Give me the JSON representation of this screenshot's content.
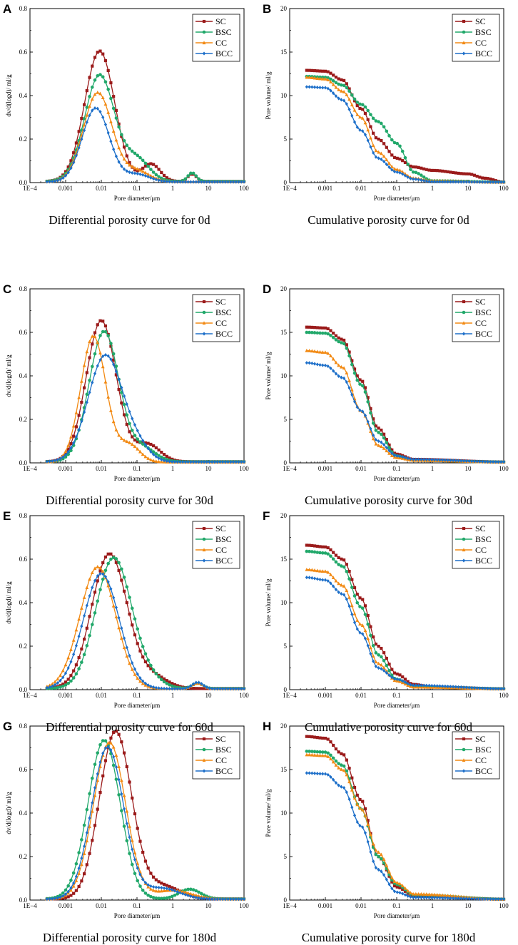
{
  "series_names": [
    "SC",
    "BSC",
    "CC",
    "BCC"
  ],
  "series_colors": {
    "SC": "#9b1b1b",
    "BSC": "#21a86a",
    "CC": "#f28a14",
    "BCC": "#1d6fc9"
  },
  "series_markers": {
    "SC": "square",
    "BSC": "circle",
    "CC": "triangle",
    "BCC": "diamond"
  },
  "x_axis": {
    "label": "Pore diameter/μm",
    "scale": "log",
    "range": [
      0.0001,
      100
    ],
    "ticks": [
      0.0001,
      0.001,
      0.01,
      0.1,
      1,
      10,
      100
    ],
    "tick_labels": [
      "1E−4",
      "0.001",
      "0.01",
      "0.1",
      "1",
      "10",
      "100"
    ]
  },
  "chart_data": [
    {
      "id": "A",
      "type": "line",
      "panel_label": "A",
      "caption": "Differential porosity curve for 0d",
      "ylabel": "dv/d(logd)/ ml/g",
      "ylim": [
        0,
        0.8
      ],
      "yticks": [
        0,
        0.2,
        0.4,
        0.6,
        0.8
      ],
      "ytick_labels": [
        "0.0",
        "0.2",
        "0.4",
        "0.6",
        "0.8"
      ],
      "x_min": 0.0003,
      "points": 75,
      "series": [
        {
          "name": "SC",
          "peaks": [
            [
              0.009,
              0.6,
              0.42
            ],
            [
              0.25,
              0.08,
              0.25
            ],
            [
              3.5,
              0.035,
              0.12
            ]
          ],
          "base": 0.005
        },
        {
          "name": "BSC",
          "peaks": [
            [
              0.009,
              0.49,
              0.42
            ],
            [
              0.1,
              0.1,
              0.35
            ],
            [
              3.5,
              0.04,
              0.12
            ]
          ],
          "base": 0.005
        },
        {
          "name": "CC",
          "peaks": [
            [
              0.008,
              0.41,
              0.4
            ],
            [
              0.1,
              0.05,
              0.35
            ]
          ],
          "base": 0.004
        },
        {
          "name": "BCC",
          "peaks": [
            [
              0.007,
              0.34,
              0.38
            ],
            [
              0.1,
              0.035,
              0.35
            ]
          ],
          "base": 0.003
        }
      ]
    },
    {
      "id": "B",
      "type": "line",
      "panel_label": "B",
      "caption": "Cumulative porosity curve for 0d",
      "ylabel": "Pore volume/ ml/g",
      "ylim": [
        0,
        20
      ],
      "yticks": [
        0,
        5,
        10,
        15,
        20
      ],
      "ytick_labels": [
        "0",
        "5",
        "10",
        "15",
        "20"
      ],
      "x_min": 0.0003,
      "points": 75,
      "series": [
        {
          "name": "SC",
          "curve": [
            [
              0.0003,
              12.9
            ],
            [
              0.001,
              12.8
            ],
            [
              0.003,
              11.8
            ],
            [
              0.01,
              8.5
            ],
            [
              0.03,
              5.0
            ],
            [
              0.1,
              2.8
            ],
            [
              0.3,
              1.8
            ],
            [
              1,
              1.4
            ],
            [
              10,
              1.0
            ],
            [
              30,
              0.5
            ],
            [
              100,
              0.05
            ]
          ]
        },
        {
          "name": "BSC",
          "curve": [
            [
              0.0003,
              12.2
            ],
            [
              0.001,
              12.1
            ],
            [
              0.003,
              11.2
            ],
            [
              0.01,
              9.0
            ],
            [
              0.03,
              7.0
            ],
            [
              0.1,
              4.5
            ],
            [
              0.3,
              1.2
            ],
            [
              1,
              0.2
            ],
            [
              100,
              0.05
            ]
          ]
        },
        {
          "name": "CC",
          "curve": [
            [
              0.0003,
              12.1
            ],
            [
              0.001,
              11.9
            ],
            [
              0.003,
              10.5
            ],
            [
              0.01,
              7.5
            ],
            [
              0.03,
              3.5
            ],
            [
              0.1,
              1.5
            ],
            [
              0.3,
              0.5
            ],
            [
              1,
              0.2
            ],
            [
              100,
              0.05
            ]
          ]
        },
        {
          "name": "BCC",
          "curve": [
            [
              0.0003,
              11.0
            ],
            [
              0.001,
              10.9
            ],
            [
              0.003,
              9.5
            ],
            [
              0.01,
              6.0
            ],
            [
              0.03,
              2.8
            ],
            [
              0.1,
              1.2
            ],
            [
              0.3,
              0.4
            ],
            [
              1,
              0.1
            ],
            [
              100,
              0.05
            ]
          ]
        }
      ]
    },
    {
      "id": "C",
      "type": "line",
      "panel_label": "C",
      "caption": "Differential porosity curve for 30d",
      "ylabel": "dv/d(logd)/ ml/g",
      "ylim": [
        0,
        0.8
      ],
      "yticks": [
        0,
        0.2,
        0.4,
        0.6,
        0.8
      ],
      "ytick_labels": [
        "0.0",
        "0.2",
        "0.4",
        "0.6",
        "0.8"
      ],
      "x_min": 0.0003,
      "points": 75,
      "series": [
        {
          "name": "SC",
          "peaks": [
            [
              0.01,
              0.65,
              0.42
            ],
            [
              0.2,
              0.08,
              0.35
            ]
          ],
          "base": 0.005
        },
        {
          "name": "BSC",
          "peaks": [
            [
              0.012,
              0.6,
              0.42
            ],
            [
              0.15,
              0.06,
              0.35
            ]
          ],
          "base": 0.005
        },
        {
          "name": "CC",
          "peaks": [
            [
              0.006,
              0.58,
              0.35
            ],
            [
              0.06,
              0.08,
              0.3
            ]
          ],
          "base": 0.004
        },
        {
          "name": "BCC",
          "peaks": [
            [
              0.013,
              0.49,
              0.48
            ],
            [
              0.1,
              0.06,
              0.35
            ]
          ],
          "base": 0.004
        }
      ]
    },
    {
      "id": "D",
      "type": "line",
      "panel_label": "D",
      "caption": "Cumulative porosity curve for 30d",
      "ylabel": "Pore volume/ ml/g",
      "ylim": [
        0,
        20
      ],
      "yticks": [
        0,
        5,
        10,
        15,
        20
      ],
      "ytick_labels": [
        "0",
        "5",
        "10",
        "15",
        "20"
      ],
      "x_min": 0.0003,
      "points": 75,
      "series": [
        {
          "name": "SC",
          "curve": [
            [
              0.0003,
              15.6
            ],
            [
              0.001,
              15.5
            ],
            [
              0.003,
              14.2
            ],
            [
              0.01,
              9.5
            ],
            [
              0.03,
              4.0
            ],
            [
              0.1,
              1.0
            ],
            [
              0.3,
              0.4
            ],
            [
              100,
              0.1
            ]
          ]
        },
        {
          "name": "BSC",
          "curve": [
            [
              0.0003,
              15.0
            ],
            [
              0.001,
              14.9
            ],
            [
              0.003,
              13.8
            ],
            [
              0.01,
              9.0
            ],
            [
              0.03,
              3.5
            ],
            [
              0.1,
              0.8
            ],
            [
              0.3,
              0.3
            ],
            [
              100,
              0.1
            ]
          ]
        },
        {
          "name": "CC",
          "curve": [
            [
              0.0003,
              12.9
            ],
            [
              0.001,
              12.7
            ],
            [
              0.003,
              11.0
            ],
            [
              0.01,
              6.0
            ],
            [
              0.03,
              2.0
            ],
            [
              0.1,
              0.6
            ],
            [
              0.3,
              0.3
            ],
            [
              100,
              0.1
            ]
          ]
        },
        {
          "name": "BCC",
          "curve": [
            [
              0.0003,
              11.5
            ],
            [
              0.001,
              11.2
            ],
            [
              0.003,
              9.8
            ],
            [
              0.01,
              6.0
            ],
            [
              0.03,
              2.5
            ],
            [
              0.1,
              0.8
            ],
            [
              0.3,
              0.4
            ],
            [
              100,
              0.1
            ]
          ]
        }
      ]
    },
    {
      "id": "E",
      "type": "line",
      "panel_label": "E",
      "caption": "Differential porosity curve for 60d",
      "ylabel": "dv/d(logd)/ ml/g",
      "ylim": [
        0,
        0.8
      ],
      "yticks": [
        0,
        0.2,
        0.4,
        0.6,
        0.8
      ],
      "ytick_labels": [
        "0.0",
        "0.2",
        "0.4",
        "0.6",
        "0.8"
      ],
      "x_min": 0.0003,
      "points": 75,
      "series": [
        {
          "name": "SC",
          "peaks": [
            [
              0.017,
              0.62,
              0.5
            ],
            [
              0.3,
              0.05,
              0.4
            ]
          ],
          "base": 0.005
        },
        {
          "name": "BSC",
          "peaks": [
            [
              0.022,
              0.6,
              0.5
            ],
            [
              0.2,
              0.04,
              0.4
            ],
            [
              5,
              0.025,
              0.15
            ]
          ],
          "base": 0.005
        },
        {
          "name": "CC",
          "peaks": [
            [
              0.008,
              0.56,
              0.5
            ],
            [
              5,
              0.025,
              0.15
            ]
          ],
          "base": 0.005
        },
        {
          "name": "BCC",
          "peaks": [
            [
              0.01,
              0.53,
              0.5
            ],
            [
              5,
              0.03,
              0.15
            ]
          ],
          "base": 0.004
        }
      ]
    },
    {
      "id": "F",
      "type": "line",
      "panel_label": "F",
      "caption": "Cumulative porosity curve for 60d",
      "ylabel": "Pore volume/ ml/g",
      "ylim": [
        0,
        20
      ],
      "yticks": [
        0,
        5,
        10,
        15,
        20
      ],
      "ytick_labels": [
        "0",
        "5",
        "10",
        "15",
        "20"
      ],
      "x_min": 0.0003,
      "points": 75,
      "series": [
        {
          "name": "SC",
          "curve": [
            [
              0.0003,
              16.6
            ],
            [
              0.001,
              16.4
            ],
            [
              0.003,
              15.0
            ],
            [
              0.01,
              10.5
            ],
            [
              0.03,
              5.0
            ],
            [
              0.1,
              1.8
            ],
            [
              0.3,
              0.6
            ],
            [
              1,
              0.3
            ],
            [
              100,
              0.1
            ]
          ]
        },
        {
          "name": "BSC",
          "curve": [
            [
              0.0003,
              15.9
            ],
            [
              0.001,
              15.7
            ],
            [
              0.003,
              14.2
            ],
            [
              0.01,
              9.5
            ],
            [
              0.03,
              4.0
            ],
            [
              0.1,
              1.2
            ],
            [
              0.3,
              0.4
            ],
            [
              100,
              0.1
            ]
          ]
        },
        {
          "name": "CC",
          "curve": [
            [
              0.0003,
              13.8
            ],
            [
              0.001,
              13.6
            ],
            [
              0.003,
              12.0
            ],
            [
              0.01,
              7.5
            ],
            [
              0.03,
              3.0
            ],
            [
              0.1,
              1.0
            ],
            [
              0.3,
              0.3
            ],
            [
              100,
              0.1
            ]
          ]
        },
        {
          "name": "BCC",
          "curve": [
            [
              0.0003,
              12.9
            ],
            [
              0.001,
              12.6
            ],
            [
              0.003,
              11.0
            ],
            [
              0.01,
              6.5
            ],
            [
              0.03,
              2.5
            ],
            [
              0.1,
              1.2
            ],
            [
              0.3,
              0.5
            ],
            [
              100,
              0.1
            ]
          ]
        }
      ]
    },
    {
      "id": "G",
      "type": "line",
      "panel_label": "G",
      "caption": "Differential porosity curve for 180d",
      "ylabel": "dv/d(logd)/ ml/g",
      "ylim": [
        0,
        0.8
      ],
      "yticks": [
        0,
        0.2,
        0.4,
        0.6,
        0.8
      ],
      "ytick_labels": [
        "0.0",
        "0.2",
        "0.4",
        "0.6",
        "0.8"
      ],
      "x_min": 0.0003,
      "points": 75,
      "series": [
        {
          "name": "SC",
          "peaks": [
            [
              0.025,
              0.77,
              0.45
            ],
            [
              0.5,
              0.06,
              0.5
            ]
          ],
          "base": 0.005
        },
        {
          "name": "BSC",
          "peaks": [
            [
              0.012,
              0.73,
              0.45
            ],
            [
              3,
              0.045,
              0.3
            ]
          ],
          "base": 0.005
        },
        {
          "name": "CC",
          "peaks": [
            [
              0.017,
              0.72,
              0.45
            ],
            [
              1,
              0.04,
              0.5
            ]
          ],
          "base": 0.005
        },
        {
          "name": "BCC",
          "peaks": [
            [
              0.015,
              0.7,
              0.45
            ],
            [
              0.5,
              0.05,
              0.5
            ]
          ],
          "base": 0.004
        }
      ]
    },
    {
      "id": "H",
      "type": "line",
      "panel_label": "H",
      "caption": "Cumulative porosity curve for 180d",
      "ylabel": "Pore volume/ ml/g",
      "ylim": [
        0,
        20
      ],
      "yticks": [
        0,
        5,
        10,
        15,
        20
      ],
      "ytick_labels": [
        "0",
        "5",
        "10",
        "15",
        "20"
      ],
      "x_min": 0.0003,
      "points": 75,
      "series": [
        {
          "name": "SC",
          "curve": [
            [
              0.0003,
              18.8
            ],
            [
              0.001,
              18.6
            ],
            [
              0.003,
              16.8
            ],
            [
              0.01,
              11.5
            ],
            [
              0.03,
              5.0
            ],
            [
              0.1,
              1.5
            ],
            [
              0.3,
              0.5
            ],
            [
              100,
              0.1
            ]
          ]
        },
        {
          "name": "BSC",
          "curve": [
            [
              0.0003,
              17.1
            ],
            [
              0.001,
              17.0
            ],
            [
              0.003,
              15.5
            ],
            [
              0.01,
              10.5
            ],
            [
              0.03,
              5.0
            ],
            [
              0.1,
              1.8
            ],
            [
              0.3,
              0.6
            ],
            [
              100,
              0.1
            ]
          ]
        },
        {
          "name": "CC",
          "curve": [
            [
              0.0003,
              16.7
            ],
            [
              0.001,
              16.6
            ],
            [
              0.003,
              15.0
            ],
            [
              0.01,
              10.5
            ],
            [
              0.03,
              5.5
            ],
            [
              0.1,
              2.0
            ],
            [
              0.3,
              0.7
            ],
            [
              100,
              0.1
            ]
          ]
        },
        {
          "name": "BCC",
          "curve": [
            [
              0.0003,
              14.6
            ],
            [
              0.001,
              14.5
            ],
            [
              0.003,
              13.0
            ],
            [
              0.01,
              8.5
            ],
            [
              0.03,
              3.5
            ],
            [
              0.1,
              0.9
            ],
            [
              0.3,
              0.3
            ],
            [
              100,
              0.1
            ]
          ]
        }
      ]
    }
  ]
}
